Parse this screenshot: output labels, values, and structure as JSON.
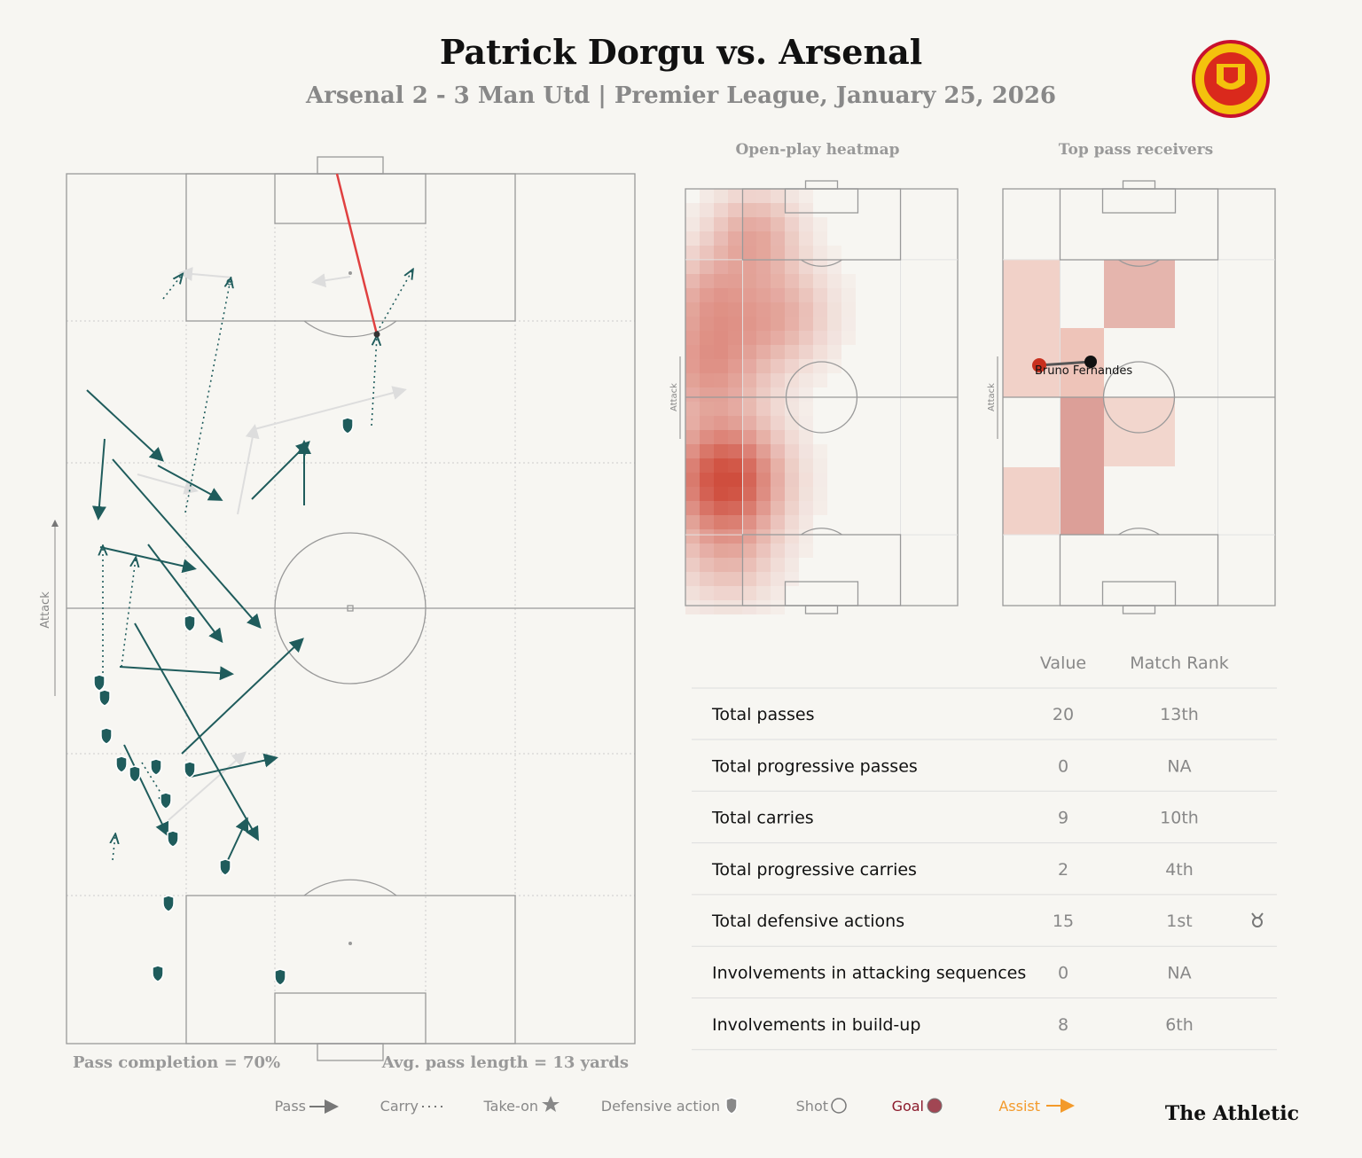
{
  "header": {
    "title": "Patrick Dorgu vs. Arsenal",
    "subtitle": "Arsenal 2 - 3 Man Utd | Premier League, January 25, 2026"
  },
  "pass_map": {
    "attack_label": "Attack",
    "pass_completion": "Pass completion = 70%",
    "avg_pass_length": "Avg. pass length = 13 yards"
  },
  "heatmap": {
    "title": "Open-play heatmap",
    "attack_label": "Attack"
  },
  "receivers": {
    "title": "Top pass receivers",
    "attack_label": "Attack",
    "player": "Bruno Fernandes"
  },
  "table": {
    "columns": [
      "Value",
      "Match Rank"
    ],
    "rows": [
      [
        "Total passes",
        20,
        "13th"
      ],
      [
        "Total progressive passes",
        0,
        "NA"
      ],
      [
        "Total carries",
        9,
        "10th"
      ],
      [
        "Total progressive carries",
        2,
        "4th"
      ],
      [
        "Total defensive actions",
        15,
        "1st"
      ],
      [
        "Involvements in attacking sequences",
        0,
        "NA"
      ],
      [
        "Involvements in build-up",
        8,
        "6th"
      ]
    ]
  },
  "legend": [
    "Pass",
    "Carry",
    "Take-on",
    "Defensive action",
    "Shot",
    "Goal",
    "Assist"
  ],
  "brand": "The Athletic"
}
